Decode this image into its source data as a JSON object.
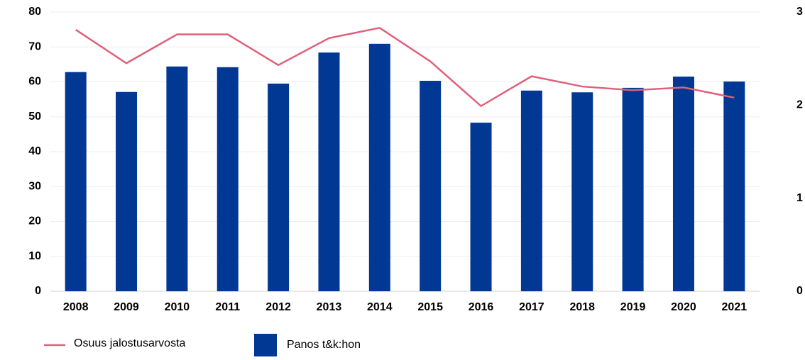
{
  "chart_data": {
    "type": "bar_line",
    "categories": [
      "2008",
      "2009",
      "2010",
      "2011",
      "2012",
      "2013",
      "2014",
      "2015",
      "2016",
      "2017",
      "2018",
      "2019",
      "2020",
      "2021"
    ],
    "series": [
      {
        "name": "Osuus jalostusarvosta",
        "type": "line",
        "axis": "y2",
        "color": "#e0607a",
        "values": [
          2.81,
          2.45,
          2.76,
          2.76,
          2.43,
          2.72,
          2.83,
          2.47,
          1.99,
          2.31,
          2.2,
          2.16,
          2.19,
          2.08
        ]
      },
      {
        "name": "Panos t&k:hon",
        "type": "bar",
        "color": "#003893",
        "values": [
          62.8,
          57.1,
          64.4,
          64.2,
          59.5,
          68.4,
          70.9,
          60.3,
          48.3,
          57.5,
          57.0,
          58.3,
          61.5,
          60.1
        ]
      }
    ],
    "ylim": [
      0,
      80
    ],
    "yticks": [
      0,
      10,
      20,
      30,
      40,
      50,
      60,
      70,
      80
    ],
    "y2lim": [
      0,
      3
    ],
    "y2ticks": [
      0,
      1,
      2,
      3
    ],
    "grid": true,
    "legend": "bottom-left"
  }
}
